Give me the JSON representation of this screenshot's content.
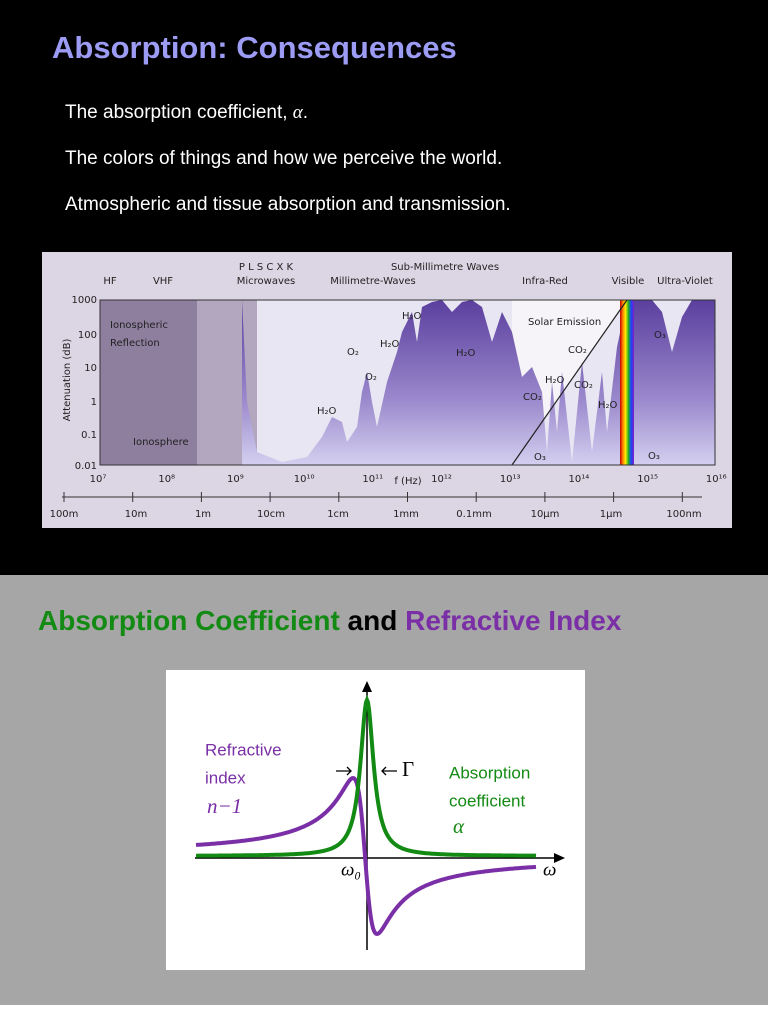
{
  "slide1": {
    "title": "Absorption:  Consequences",
    "bullets": [
      {
        "text": "The absorption coefficient, ",
        "symbol": "α",
        "suffix": "."
      },
      {
        "text": "The colors of things and how we perceive the world."
      },
      {
        "text": "Atmospheric and tissue absorption and transmission."
      }
    ],
    "figure": {
      "bands": [
        "HF",
        "VHF",
        "P  L  S  C  X  K",
        "Microwaves",
        "Sub-Millimetre Waves",
        "Millimetre-Waves",
        "Infra-Red",
        "Visible",
        "Ultra-Violet"
      ],
      "y_axis_label": "Attenuation (dB)",
      "y_ticks": [
        "1000",
        "100",
        "10",
        "1",
        "0.1",
        "0.01"
      ],
      "x_ticks": [
        "10⁷",
        "10⁸",
        "10⁹",
        "10¹⁰",
        "10¹¹",
        "10¹²",
        "10¹³",
        "10¹⁴",
        "10¹⁵",
        "10¹⁶"
      ],
      "x_axis_label": "f (Hz)",
      "wavelengths": [
        "100m",
        "10m",
        "1m",
        "10cm",
        "1cm",
        "1mm",
        "0.1mm",
        "10µm",
        "1µm",
        "100nm"
      ],
      "annotations": [
        "Ionospheric",
        "Reflection",
        "Ionosphere",
        "Solar Emission",
        "H₂O",
        "H₂O",
        "H₂O",
        "H₂O",
        "H₂O",
        "H₂O",
        "O₂",
        "O₂",
        "CO₂",
        "CO₂",
        "CO₂",
        "O₃",
        "O₃",
        "O₃"
      ]
    }
  },
  "slide2": {
    "title_parts": [
      "Absorption Coefficient",
      " and ",
      "Refractive Index"
    ],
    "diagram": {
      "refractive_label": [
        "Refractive",
        "index"
      ],
      "refractive_symbol": "n−1",
      "width_symbol": "Γ",
      "absorption_label": [
        "Absorption",
        "coefficient"
      ],
      "absorption_symbol": "α",
      "center_frequency": "ω₀",
      "frequency": "ω"
    }
  }
}
